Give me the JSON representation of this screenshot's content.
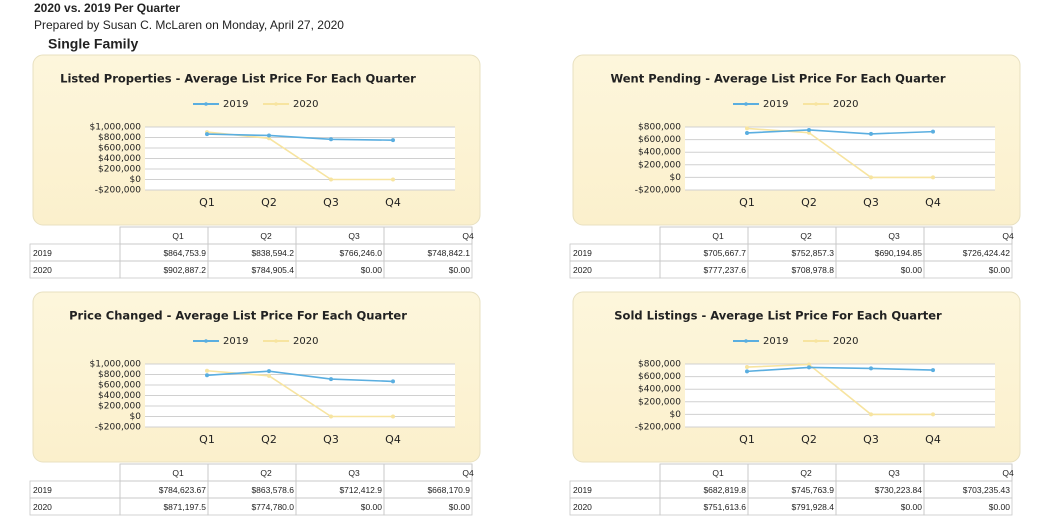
{
  "header": {
    "title": "2020 vs. 2019 Per Quarter",
    "subtitle": "Prepared by Susan C. McLaren on Monday, April 27, 2020",
    "section": "Single Family"
  },
  "chart_data": [
    {
      "type": "line",
      "title": "Listed Properties - Average List Price For Each Quarter",
      "categories": [
        "Q1",
        "Q2",
        "Q3",
        "Q4"
      ],
      "series": [
        {
          "name": "2019",
          "color": "#5aaee0",
          "values": [
            864753.9,
            838594.2,
            766246.0,
            748842.1
          ],
          "value_labels": [
            "$864,753.9",
            "$838,594.2",
            "$766,246.0",
            "$748,842.1"
          ]
        },
        {
          "name": "2020",
          "color": "#f7e4a0",
          "values": [
            902887.2,
            784905.4,
            0,
            0
          ],
          "value_labels": [
            "$902,887.2",
            "$784,905.4",
            "$0.00",
            "$0.00"
          ]
        }
      ],
      "ylim": [
        -200000,
        1000000
      ],
      "yticks": [
        {
          "value": -200000,
          "label": "-$200,000"
        },
        {
          "value": 0,
          "label": "$0"
        },
        {
          "value": 200000,
          "label": "$200,000"
        },
        {
          "value": 400000,
          "label": "$400,000"
        },
        {
          "value": 600000,
          "label": "$600,000"
        },
        {
          "value": 800000,
          "label": "$800,000"
        },
        {
          "value": 1000000,
          "label": "$1,000,000"
        }
      ],
      "grid": true,
      "legend": "top"
    },
    {
      "type": "line",
      "title": "Went Pending - Average List Price For Each Quarter",
      "categories": [
        "Q1",
        "Q2",
        "Q3",
        "Q4"
      ],
      "series": [
        {
          "name": "2019",
          "color": "#5aaee0",
          "values": [
            705667.7,
            752857.3,
            690194.85,
            726424.42
          ],
          "value_labels": [
            "$705,667.7",
            "$752,857.3",
            "$690,194.85",
            "$726,424.42"
          ]
        },
        {
          "name": "2020",
          "color": "#f7e4a0",
          "values": [
            777237.6,
            708978.8,
            0,
            0
          ],
          "value_labels": [
            "$777,237.6",
            "$708,978.8",
            "$0.00",
            "$0.00"
          ]
        }
      ],
      "ylim": [
        -200000,
        800000
      ],
      "yticks": [
        {
          "value": -200000,
          "label": "-$200,000"
        },
        {
          "value": 0,
          "label": "$0"
        },
        {
          "value": 200000,
          "label": "$200,000"
        },
        {
          "value": 400000,
          "label": "$400,000"
        },
        {
          "value": 600000,
          "label": "$600,000"
        },
        {
          "value": 800000,
          "label": "$800,000"
        }
      ],
      "grid": true,
      "legend": "top"
    },
    {
      "type": "line",
      "title": "Price Changed - Average List Price For Each Quarter",
      "categories": [
        "Q1",
        "Q2",
        "Q3",
        "Q4"
      ],
      "series": [
        {
          "name": "2019",
          "color": "#5aaee0",
          "values": [
            784623.67,
            863578.6,
            712412.9,
            668170.9
          ],
          "value_labels": [
            "$784,623.67",
            "$863,578.6",
            "$712,412.9",
            "$668,170.9"
          ]
        },
        {
          "name": "2020",
          "color": "#f7e4a0",
          "values": [
            871197.5,
            774780.0,
            0,
            0
          ],
          "value_labels": [
            "$871,197.5",
            "$774,780.0",
            "$0.00",
            "$0.00"
          ]
        }
      ],
      "ylim": [
        -200000,
        1000000
      ],
      "yticks": [
        {
          "value": -200000,
          "label": "-$200,000"
        },
        {
          "value": 0,
          "label": "$0"
        },
        {
          "value": 200000,
          "label": "$200,000"
        },
        {
          "value": 400000,
          "label": "$400,000"
        },
        {
          "value": 600000,
          "label": "$600,000"
        },
        {
          "value": 800000,
          "label": "$800,000"
        },
        {
          "value": 1000000,
          "label": "$1,000,000"
        }
      ],
      "grid": true,
      "legend": "top"
    },
    {
      "type": "line",
      "title": "Sold Listings - Average List Price For Each Quarter",
      "categories": [
        "Q1",
        "Q2",
        "Q3",
        "Q4"
      ],
      "series": [
        {
          "name": "2019",
          "color": "#5aaee0",
          "values": [
            682819.8,
            745763.9,
            730223.84,
            703235.43
          ],
          "value_labels": [
            "$682,819.8",
            "$745,763.9",
            "$730,223.84",
            "$703,235.43"
          ]
        },
        {
          "name": "2020",
          "color": "#f7e4a0",
          "values": [
            751613.6,
            791928.4,
            0,
            0
          ],
          "value_labels": [
            "$751,613.6",
            "$791,928.4",
            "$0.00",
            "$0.00"
          ]
        }
      ],
      "ylim": [
        -200000,
        800000
      ],
      "yticks": [
        {
          "value": -200000,
          "label": "-$200,000"
        },
        {
          "value": 0,
          "label": "$0"
        },
        {
          "value": 200000,
          "label": "$200,000"
        },
        {
          "value": 400000,
          "label": "$400,000"
        },
        {
          "value": 600000,
          "label": "$600,000"
        },
        {
          "value": 800000,
          "label": "$800,000"
        }
      ],
      "grid": true,
      "legend": "top"
    }
  ]
}
